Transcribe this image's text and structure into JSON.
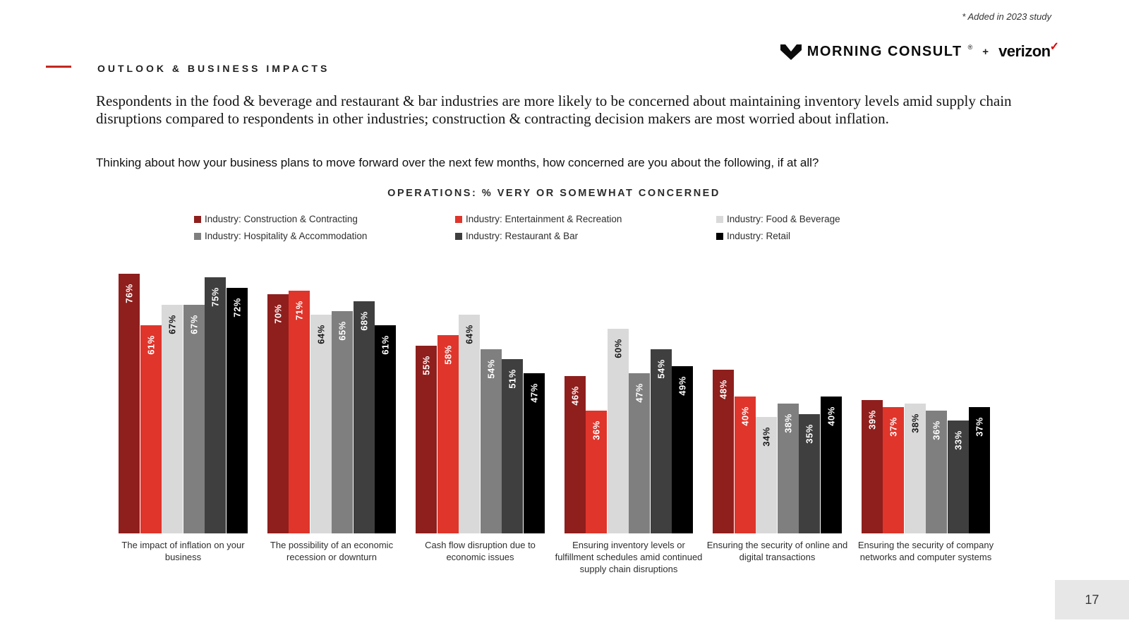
{
  "header": {
    "note": "* Added in 2023 study",
    "section": "OUTLOOK & BUSINESS IMPACTS",
    "headline": "Respondents in the food & beverage and restaurant & bar industries are more likely to be concerned about maintaining inventory levels amid supply chain disruptions compared to respondents in other industries; construction & contracting decision makers are most worried about inflation.",
    "question": "Thinking about how your business plans to move forward over the next few months, how concerned are you about the following, if at all?",
    "logos": {
      "morning_consult": "MORNING CONSULT",
      "reg": "®",
      "separator": "+",
      "verizon": "verizon",
      "check": "✓"
    }
  },
  "colors": {
    "accent": "#C3271F",
    "verizon_check": "#E00000",
    "page_box_bg": "#E7E7E7"
  },
  "chart_data": {
    "type": "bar",
    "title": "OPERATIONS: % VERY OR SOMEWHAT CONCERNED",
    "value_suffix": "%",
    "ylim": [
      0,
      80
    ],
    "grid": false,
    "legend_position": "top",
    "categories": [
      "The impact of inflation on your business",
      "The possibility of an economic recession or downturn",
      "Cash flow disruption due to economic issues",
      "Ensuring inventory levels or fulfillment schedules amid continued supply chain disruptions",
      "Ensuring the security of online and digital transactions",
      "Ensuring the security of company networks and computer systems"
    ],
    "series": [
      {
        "name": "Industry: Construction & Contracting",
        "color": "#8E1F1D",
        "label_color": "#ffffff",
        "values": [
          76,
          70,
          55,
          46,
          48,
          39
        ]
      },
      {
        "name": "Industry: Entertainment & Recreation",
        "color": "#E0352B",
        "label_color": "#ffffff",
        "values": [
          61,
          71,
          58,
          36,
          40,
          37
        ]
      },
      {
        "name": "Industry: Food & Beverage",
        "color": "#D9D9D9",
        "label_color": "#1a1a1a",
        "values": [
          67,
          64,
          64,
          60,
          34,
          38
        ]
      },
      {
        "name": "Industry: Hospitality & Accommodation",
        "color": "#7F7F7F",
        "label_color": "#ffffff",
        "values": [
          67,
          65,
          54,
          47,
          38,
          36
        ]
      },
      {
        "name": "Industry: Restaurant & Bar",
        "color": "#3F3F3F",
        "label_color": "#ffffff",
        "values": [
          75,
          68,
          51,
          54,
          35,
          33
        ]
      },
      {
        "name": "Industry: Retail",
        "color": "#000000",
        "label_color": "#ffffff",
        "values": [
          72,
          61,
          47,
          49,
          40,
          37
        ]
      }
    ]
  },
  "footer": {
    "page": "17"
  }
}
